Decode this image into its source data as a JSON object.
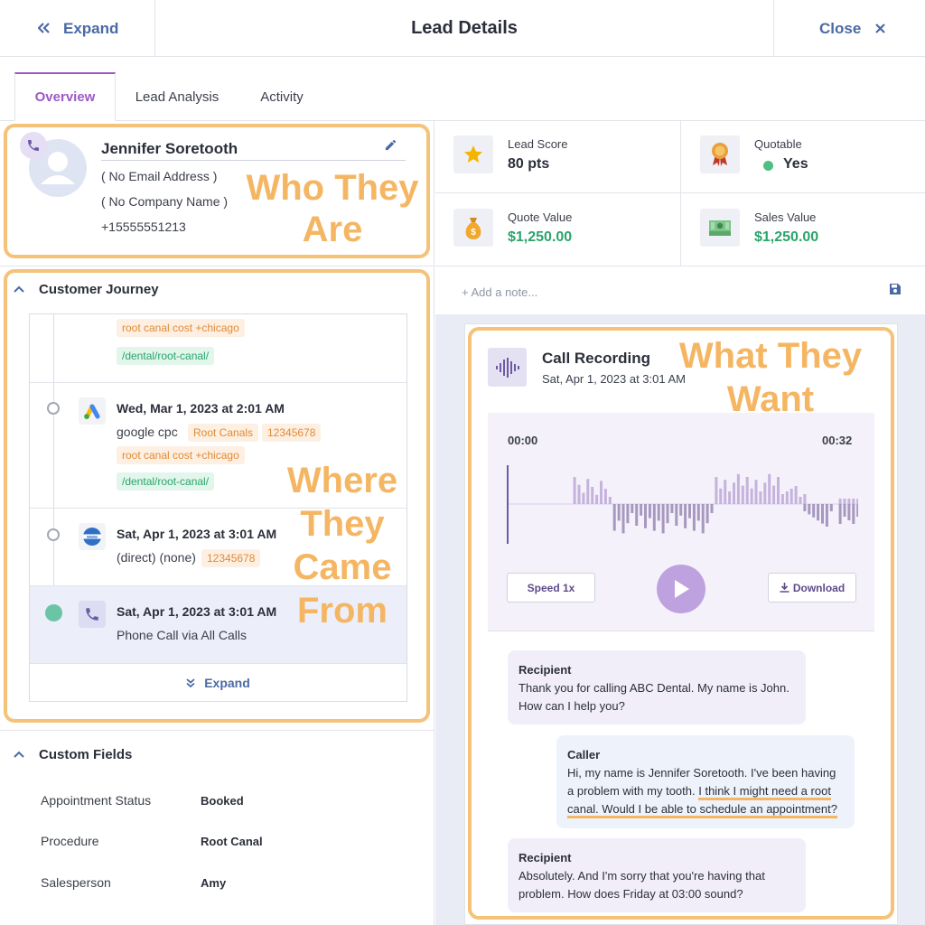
{
  "header": {
    "expand_label": "Expand",
    "title": "Lead Details",
    "close_label": "Close"
  },
  "tabs": [
    {
      "label": "Overview",
      "active": true
    },
    {
      "label": "Lead Analysis"
    },
    {
      "label": "Activity"
    }
  ],
  "contact": {
    "name": "Jennifer Soretooth",
    "email": "( No Email Address )",
    "company": "( No Company Name )",
    "phone": "+15555551213"
  },
  "annotations": {
    "who": "Who They Are",
    "where": "Where They Came From",
    "what": "What They Want"
  },
  "journey": {
    "title": "Customer Journey",
    "entries": [
      {
        "tags": [
          "root canal cost +chicago"
        ],
        "url": "/dental/root-canal/"
      },
      {
        "date": "Wed, Mar 1, 2023 at 2:01 AM",
        "source": "google cpc",
        "tags": [
          "Root Canals",
          "12345678",
          "root canal cost +chicago"
        ],
        "url": "/dental/root-canal/",
        "icon": "google-ads-icon"
      },
      {
        "date": "Sat, Apr 1, 2023 at 3:01 AM",
        "source": "(direct) (none)",
        "tags": [
          "12345678"
        ],
        "icon": "www-globe-icon"
      },
      {
        "date": "Sat, Apr 1, 2023 at 3:01 AM",
        "source": "Phone Call via All Calls",
        "icon": "phone-icon"
      }
    ],
    "expand_label": "Expand"
  },
  "custom_fields": {
    "title": "Custom Fields",
    "items": [
      {
        "label": "Appointment Status",
        "value": "Booked"
      },
      {
        "label": "Procedure",
        "value": "Root Canal"
      },
      {
        "label": "Salesperson",
        "value": "Amy"
      }
    ]
  },
  "stats": {
    "lead_score": {
      "label": "Lead Score",
      "value": "80 pts"
    },
    "quotable": {
      "label": "Quotable",
      "value": "Yes"
    },
    "quote_value": {
      "label": "Quote Value",
      "value": "$1,250.00"
    },
    "sales_value": {
      "label": "Sales Value",
      "value": "$1,250.00"
    }
  },
  "note": {
    "placeholder": "+ Add a note..."
  },
  "recording": {
    "title": "Call Recording",
    "date": "Sat, Apr 1, 2023 at 3:01 AM",
    "time_start": "00:00",
    "time_end": "00:32",
    "speed_label": "Speed 1x",
    "download_label": "Download",
    "waveform": {
      "up": [
        0,
        0,
        0,
        0,
        0,
        0,
        0,
        0,
        0,
        0,
        0,
        0,
        0,
        0,
        0,
        0,
        0,
        0,
        0,
        0,
        0,
        0,
        0,
        0,
        0,
        0,
        0,
        0,
        0,
        0,
        0,
        0,
        0,
        0,
        0,
        0,
        0,
        0,
        0,
        0,
        0,
        0,
        0,
        0,
        0,
        0,
        0,
        0,
        0,
        0,
        0,
        0,
        0,
        0,
        0,
        0,
        0,
        0,
        0,
        0,
        0,
        0,
        0,
        0,
        0,
        0,
        0,
        0,
        0,
        0,
        0,
        0,
        0,
        0,
        0,
        0,
        0,
        0,
        0
      ],
      "down": [
        0,
        0,
        0,
        0,
        0,
        0,
        0,
        0,
        0,
        0,
        0,
        0,
        0,
        0,
        0,
        0,
        0,
        0,
        0,
        0,
        0,
        0,
        0,
        0,
        0,
        0,
        0,
        0,
        0,
        0,
        0,
        0,
        0,
        0,
        0,
        0,
        0,
        0,
        0,
        0,
        0,
        0,
        0,
        0,
        0,
        0,
        0,
        0,
        0,
        0,
        0,
        0,
        0,
        0,
        0,
        0,
        0,
        0,
        0,
        0,
        0,
        0,
        0,
        0,
        0,
        0,
        0,
        0,
        0,
        0,
        0,
        0,
        0,
        0,
        0,
        0,
        0,
        0,
        0
      ]
    }
  },
  "transcript": [
    {
      "speaker": "Recipient",
      "text": "Thank you for calling ABC Dental. My name is John. How can I help you?"
    },
    {
      "speaker": "Caller",
      "text_a": "Hi, my name is Jennifer Soretooth. I've been having a problem with my tooth. ",
      "text_b": "I think I might need a root canal. Would I be able to schedule an appointment?"
    },
    {
      "speaker": "Recipient",
      "text": "Absolutely. And I'm sorry that you're having that problem. How does Friday at 03:00 sound?"
    }
  ],
  "colors": {
    "accent": "#9b59c8",
    "link": "#4a6aa5",
    "annotation": "#f5b663",
    "green": "#2aa46b",
    "tag_orange": "#e18a36"
  }
}
